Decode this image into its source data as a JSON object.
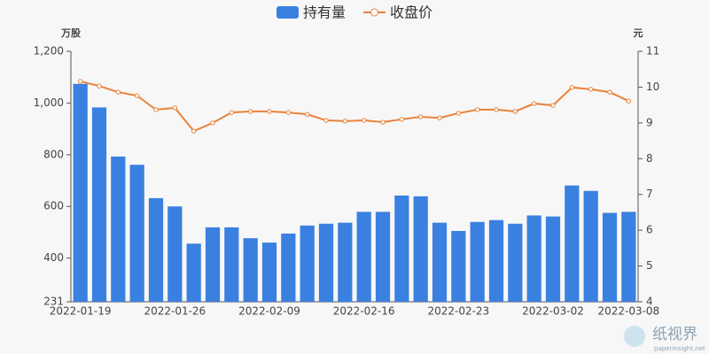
{
  "chart_data": {
    "type": "combo",
    "y_axis_label": "万股",
    "y2_axis_label": "元",
    "categories": [
      "2022-01-19",
      null,
      null,
      null,
      null,
      "2022-01-26",
      null,
      null,
      null,
      null,
      "2022-02-09",
      null,
      null,
      null,
      null,
      "2022-02-16",
      null,
      null,
      null,
      null,
      "2022-02-23",
      null,
      null,
      null,
      null,
      "2022-03-02",
      null,
      null,
      null,
      "2022-03-08"
    ],
    "series": [
      {
        "name": "持有量",
        "type": "bar",
        "axis": "y",
        "color": "#3a80e0",
        "values": [
          1074,
          983,
          793,
          761,
          632,
          600,
          456,
          519,
          519,
          477,
          460,
          495,
          526,
          533,
          537,
          579,
          579,
          642,
          639,
          537,
          505,
          540,
          547,
          533,
          565,
          561,
          681,
          660,
          575,
          579
        ]
      },
      {
        "name": "收盘价",
        "type": "line",
        "axis": "y2",
        "color": "#e8823a",
        "values": [
          10.16,
          10.03,
          9.86,
          9.76,
          9.37,
          9.42,
          8.77,
          9.0,
          9.29,
          9.32,
          9.32,
          9.29,
          9.24,
          9.07,
          9.05,
          9.07,
          9.02,
          9.1,
          9.17,
          9.14,
          9.27,
          9.37,
          9.37,
          9.32,
          9.54,
          9.49,
          9.99,
          9.94,
          9.86,
          9.61
        ]
      }
    ],
    "ylim": [
      231,
      1200
    ],
    "yticks": [
      231,
      400,
      600,
      800,
      {
        "value": 1000,
        "label": "1,000"
      },
      {
        "value": 1200,
        "label": "1,200"
      }
    ],
    "y2lim": [
      4,
      11
    ],
    "y2ticks": [
      4,
      5,
      6,
      7,
      8,
      9,
      10,
      11
    ],
    "grid": false,
    "legend": "top",
    "watermark": "纸视界",
    "watermark_url": "paperinsight.net"
  }
}
